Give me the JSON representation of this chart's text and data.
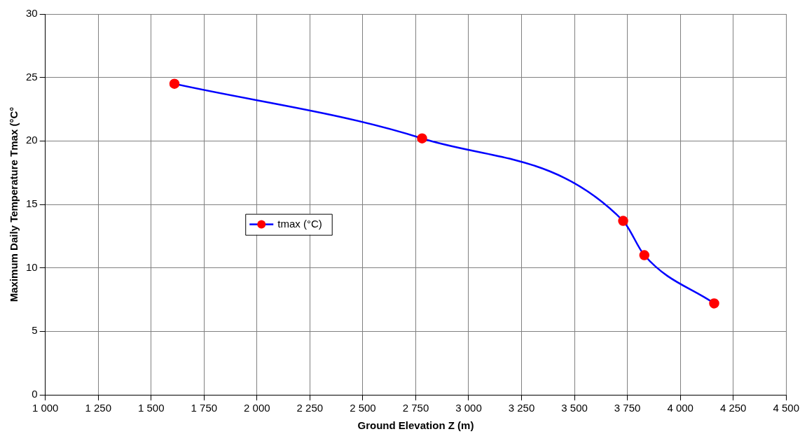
{
  "chart_data": {
    "type": "line",
    "xlabel": "Ground Elevation Z (m)",
    "ylabel": "Maximum Daily Temperature Tmax (°C°",
    "x": [
      1610,
      2780,
      3730,
      3830,
      4160
    ],
    "series": [
      {
        "name": "tmax (°C)",
        "color": "#0000ff",
        "values": [
          24.5,
          20.2,
          13.7,
          11.0,
          7.2
        ],
        "colors": [
          "#ff0000",
          "#ff0000",
          "#ff0000",
          "#ff0000",
          "#ff0000"
        ]
      }
    ],
    "xlim": [
      1000,
      4500
    ],
    "xticks": [
      {
        "value": 1000,
        "label": "1 000"
      },
      {
        "value": 1250,
        "label": "1 250"
      },
      {
        "value": 1500,
        "label": "1 500"
      },
      {
        "value": 1750,
        "label": "1 750"
      },
      {
        "value": 2000,
        "label": "2 000"
      },
      {
        "value": 2250,
        "label": "2 250"
      },
      {
        "value": 2500,
        "label": "2 500"
      },
      {
        "value": 2750,
        "label": "2 750"
      },
      {
        "value": 3000,
        "label": "3 000"
      },
      {
        "value": 3250,
        "label": "3 250"
      },
      {
        "value": 3500,
        "label": "3 500"
      },
      {
        "value": 3750,
        "label": "3 750"
      },
      {
        "value": 4000,
        "label": "4 000"
      },
      {
        "value": 4250,
        "label": "4 250"
      },
      {
        "value": 4500,
        "label": "4 500"
      }
    ],
    "ylim": [
      0,
      30
    ],
    "yticks": [
      0,
      5,
      10,
      15,
      20,
      25,
      30
    ],
    "grid": true,
    "legend": "center",
    "marker": "circle",
    "line_style": "solid"
  }
}
